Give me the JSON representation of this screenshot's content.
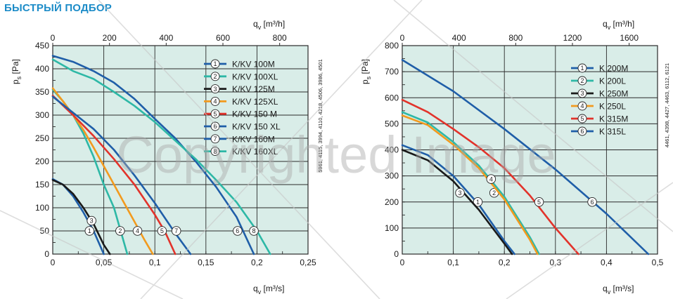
{
  "page": {
    "title": "БЫСТРЫЙ ПОДБОР"
  },
  "watermark": {
    "text": "Copyrighted Image",
    "color": "#a8a8a8"
  },
  "colors": {
    "plot_bg": "#d9ede8",
    "grid": "#2a2a2a",
    "text": "#1a1a1a",
    "title": "#1d8cc8"
  },
  "chart_data": [
    {
      "type": "line",
      "x_bottom_label": "q",
      "x_bottom_sub": "v",
      "x_bottom_unit": "[m³/s]",
      "x_top_label": "q",
      "x_top_sub": "v",
      "x_top_unit": "[m³/h]",
      "y_label": "p",
      "y_sub": "s",
      "y_unit": "[Pa]",
      "xlim": [
        0,
        0.25
      ],
      "ylim": [
        0,
        450
      ],
      "x_ticks": [
        0,
        0.05,
        0.1,
        0.15,
        0.2,
        0.25
      ],
      "x_tick_labels": [
        "0",
        "0,05",
        "0,1",
        "0,15",
        "0,2",
        "0,25"
      ],
      "y_ticks": [
        0,
        50,
        100,
        150,
        200,
        250,
        300,
        350,
        400,
        450
      ],
      "y_tick_labels": [
        "0",
        "50",
        "100",
        "150",
        "200",
        "250",
        "300",
        "350",
        "400",
        "450"
      ],
      "top_ticks": [
        0,
        200,
        400,
        600,
        800
      ],
      "top_tick_labels": [
        "0",
        "200",
        "400",
        "600",
        "800"
      ],
      "top_factor": 3600,
      "side_note": "5961, 4115, 3994, 4110, 4218, 4506, 3986, 4501",
      "grid": true,
      "legend_position": "top-right",
      "series": [
        {
          "marker": "1",
          "name": "K/KV 100M",
          "color": "#1f5ea8",
          "x": [
            0,
            0.01,
            0.02,
            0.03,
            0.04,
            0.05
          ],
          "y": [
            162,
            150,
            125,
            90,
            50,
            0
          ],
          "marker_at": [
            0.036,
            50
          ]
        },
        {
          "marker": "2",
          "name": "K/KV 100XL",
          "color": "#2eb8a6",
          "x": [
            0,
            0.01,
            0.02,
            0.03,
            0.04,
            0.05,
            0.06,
            0.073
          ],
          "y": [
            355,
            330,
            300,
            260,
            210,
            150,
            100,
            0
          ],
          "marker_at": [
            0.066,
            50
          ]
        },
        {
          "marker": "3",
          "name": "K/KV 125M",
          "color": "#1a1a1a",
          "x": [
            0,
            0.01,
            0.02,
            0.03,
            0.04,
            0.05,
            0.056
          ],
          "y": [
            160,
            150,
            130,
            100,
            65,
            20,
            0
          ],
          "marker_at": [
            0.038,
            72
          ]
        },
        {
          "marker": "4",
          "name": "K/KV 125XL",
          "color": "#f29a1e",
          "x": [
            0,
            0.01,
            0.02,
            0.03,
            0.04,
            0.05,
            0.06,
            0.07,
            0.08,
            0.09,
            0.098
          ],
          "y": [
            358,
            330,
            300,
            268,
            230,
            190,
            150,
            110,
            70,
            30,
            0
          ],
          "marker_at": [
            0.083,
            50
          ]
        },
        {
          "marker": "5",
          "name": "K/KV 150 M",
          "color": "#e2332b",
          "x": [
            0,
            0.02,
            0.04,
            0.06,
            0.08,
            0.1,
            0.11,
            0.12
          ],
          "y": [
            342,
            300,
            255,
            205,
            150,
            85,
            48,
            0
          ],
          "marker_at": [
            0.107,
            50
          ]
        },
        {
          "marker": "6",
          "name": "K/KV 150 XL",
          "color": "#1f5ea8",
          "x": [
            0,
            0.02,
            0.04,
            0.06,
            0.08,
            0.1,
            0.12,
            0.14,
            0.16,
            0.18,
            0.197
          ],
          "y": [
            428,
            415,
            395,
            370,
            335,
            292,
            250,
            200,
            145,
            80,
            0
          ],
          "marker_at": [
            0.181,
            50
          ]
        },
        {
          "marker": "7",
          "name": "K/KV 160M",
          "color": "#1f5ea8",
          "x": [
            0,
            0.02,
            0.04,
            0.06,
            0.08,
            0.1,
            0.12,
            0.135
          ],
          "y": [
            340,
            305,
            270,
            225,
            170,
            110,
            45,
            0
          ],
          "marker_at": [
            0.121,
            50
          ]
        },
        {
          "marker": "8",
          "name": "K/KV 160XL",
          "color": "#2eb8a6",
          "x": [
            0,
            0.02,
            0.04,
            0.06,
            0.08,
            0.1,
            0.12,
            0.14,
            0.16,
            0.18,
            0.2,
            0.213
          ],
          "y": [
            420,
            395,
            378,
            350,
            320,
            285,
            245,
            205,
            160,
            112,
            50,
            0
          ],
          "marker_at": [
            0.197,
            50
          ]
        }
      ]
    },
    {
      "type": "line",
      "x_bottom_label": "q",
      "x_bottom_sub": "v",
      "x_bottom_unit": "[m³/s]",
      "x_top_label": "q",
      "x_top_sub": "v",
      "x_top_unit": "[m³/h]",
      "y_label": "p",
      "y_sub": "s",
      "y_unit": "[Pa]",
      "xlim": [
        0,
        0.5
      ],
      "ylim": [
        0,
        800
      ],
      "x_ticks": [
        0,
        0.1,
        0.2,
        0.3,
        0.4,
        0.5
      ],
      "x_tick_labels": [
        "0",
        "0,1",
        "0,2",
        "0,3",
        "0,4",
        "0,5"
      ],
      "y_ticks": [
        0,
        100,
        200,
        300,
        400,
        500,
        600,
        700,
        800
      ],
      "y_tick_labels": [
        "0",
        "100",
        "200",
        "300",
        "400",
        "500",
        "600",
        "700",
        "800"
      ],
      "top_ticks": [
        0,
        400,
        800,
        1200,
        1600
      ],
      "top_tick_labels": [
        "0",
        "400",
        "800",
        "1200",
        "1600"
      ],
      "top_factor": 3600,
      "side_note": "4461, 4398, 4427, 4463, 6112, 6121",
      "grid": true,
      "legend_position": "top-right",
      "series": [
        {
          "marker": "1",
          "name": "K 200M",
          "color": "#1f5ea8",
          "x": [
            0,
            0.05,
            0.1,
            0.15,
            0.2,
            0.22
          ],
          "y": [
            418,
            380,
            300,
            190,
            50,
            0
          ],
          "marker_at": [
            0.148,
            200
          ]
        },
        {
          "marker": "2",
          "name": "K 200L",
          "color": "#2eb8a6",
          "x": [
            0,
            0.05,
            0.1,
            0.15,
            0.2,
            0.25,
            0.268
          ],
          "y": [
            545,
            505,
            430,
            340,
            220,
            65,
            0
          ],
          "marker_at": [
            0.18,
            235
          ]
        },
        {
          "marker": "3",
          "name": "K 250M",
          "color": "#1a1a1a",
          "x": [
            0,
            0.05,
            0.1,
            0.15,
            0.2,
            0.215
          ],
          "y": [
            400,
            360,
            280,
            170,
            40,
            0
          ],
          "marker_at": [
            0.113,
            235
          ]
        },
        {
          "marker": "4",
          "name": "K 250L",
          "color": "#f29a1e",
          "x": [
            0,
            0.05,
            0.1,
            0.15,
            0.2,
            0.25,
            0.265
          ],
          "y": [
            532,
            495,
            420,
            330,
            210,
            55,
            0
          ],
          "marker_at": [
            0.174,
            288
          ]
        },
        {
          "marker": "5",
          "name": "K 315M",
          "color": "#e2332b",
          "x": [
            0,
            0.05,
            0.1,
            0.15,
            0.2,
            0.25,
            0.3,
            0.345
          ],
          "y": [
            592,
            545,
            480,
            410,
            330,
            225,
            100,
            0
          ],
          "marker_at": [
            0.268,
            200
          ]
        },
        {
          "marker": "6",
          "name": "K 315L",
          "color": "#1f5ea8",
          "x": [
            0,
            0.1,
            0.2,
            0.3,
            0.4,
            0.482
          ],
          "y": [
            745,
            625,
            480,
            325,
            155,
            0
          ],
          "marker_at": [
            0.372,
            200
          ]
        }
      ]
    }
  ]
}
